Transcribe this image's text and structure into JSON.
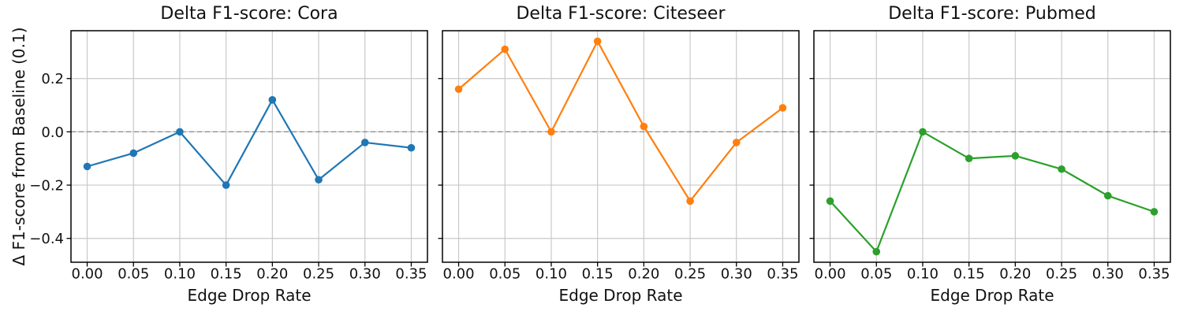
{
  "figure": {
    "background": "#ffffff",
    "ylabel": "Δ F1-score from Baseline (0.1)",
    "text_color": "#111111",
    "grid_color": "#c9c9c9",
    "spine_color": "#000000",
    "zero_line_color": "#8a8a8a"
  },
  "chart_data": [
    {
      "type": "line",
      "title": "Delta F1-score: Cora",
      "xlabel": "Edge Drop Rate",
      "ylabel": "Δ F1-score from Baseline (0.1)",
      "x": [
        0.0,
        0.05,
        0.1,
        0.15,
        0.2,
        0.25,
        0.3,
        0.35
      ],
      "series": [
        {
          "name": "Cora",
          "color": "#1f77b4",
          "marker": "o",
          "values": [
            -0.13,
            -0.08,
            0.0,
            -0.2,
            0.12,
            -0.18,
            -0.04,
            -0.06
          ]
        }
      ],
      "xlim": [
        -0.0175,
        0.3675
      ],
      "ylim": [
        -0.4895,
        0.3795
      ],
      "x_tick_values": [
        0.0,
        0.05,
        0.1,
        0.15,
        0.2,
        0.25,
        0.3,
        0.35
      ],
      "x_tick_labels": [
        "0.00",
        "0.05",
        "0.10",
        "0.15",
        "0.20",
        "0.25",
        "0.30",
        "0.35"
      ],
      "y_tick_values": [
        0.2,
        0.0,
        -0.2,
        -0.4
      ],
      "y_tick_labels": [
        "0.2",
        "0.0",
        "−0.2",
        "−0.4"
      ],
      "show_y_tick_labels": true,
      "grid": true,
      "zero_line": "dashed",
      "legend": "none"
    },
    {
      "type": "line",
      "title": "Delta F1-score: Citeseer",
      "xlabel": "Edge Drop Rate",
      "ylabel": "",
      "x": [
        0.0,
        0.05,
        0.1,
        0.15,
        0.2,
        0.25,
        0.3,
        0.35
      ],
      "series": [
        {
          "name": "Citeseer",
          "color": "#ff7f0e",
          "marker": "o",
          "values": [
            0.16,
            0.31,
            0.0,
            0.34,
            0.02,
            -0.26,
            -0.04,
            0.09
          ]
        }
      ],
      "xlim": [
        -0.0175,
        0.3675
      ],
      "ylim": [
        -0.4895,
        0.3795
      ],
      "x_tick_values": [
        0.0,
        0.05,
        0.1,
        0.15,
        0.2,
        0.25,
        0.3,
        0.35
      ],
      "x_tick_labels": [
        "0.00",
        "0.05",
        "0.10",
        "0.15",
        "0.20",
        "0.25",
        "0.30",
        "0.35"
      ],
      "y_tick_values": [
        0.2,
        0.0,
        -0.2,
        -0.4
      ],
      "y_tick_labels": [
        "0.2",
        "0.0",
        "−0.2",
        "−0.4"
      ],
      "show_y_tick_labels": false,
      "grid": true,
      "zero_line": "dashed",
      "legend": "none"
    },
    {
      "type": "line",
      "title": "Delta F1-score: Pubmed",
      "xlabel": "Edge Drop Rate",
      "ylabel": "",
      "x": [
        0.0,
        0.05,
        0.1,
        0.15,
        0.2,
        0.25,
        0.3,
        0.35
      ],
      "series": [
        {
          "name": "Pubmed",
          "color": "#2ca02c",
          "marker": "o",
          "values": [
            -0.26,
            -0.45,
            0.0,
            -0.1,
            -0.09,
            -0.14,
            -0.24,
            -0.3
          ]
        }
      ],
      "xlim": [
        -0.0175,
        0.3675
      ],
      "ylim": [
        -0.4895,
        0.3795
      ],
      "x_tick_values": [
        0.0,
        0.05,
        0.1,
        0.15,
        0.2,
        0.25,
        0.3,
        0.35
      ],
      "x_tick_labels": [
        "0.00",
        "0.05",
        "0.10",
        "0.15",
        "0.20",
        "0.25",
        "0.30",
        "0.35"
      ],
      "y_tick_values": [
        0.2,
        0.0,
        -0.2,
        -0.4
      ],
      "y_tick_labels": [
        "0.2",
        "0.0",
        "−0.2",
        "−0.4"
      ],
      "show_y_tick_labels": false,
      "grid": true,
      "zero_line": "dashed",
      "legend": "none"
    }
  ]
}
